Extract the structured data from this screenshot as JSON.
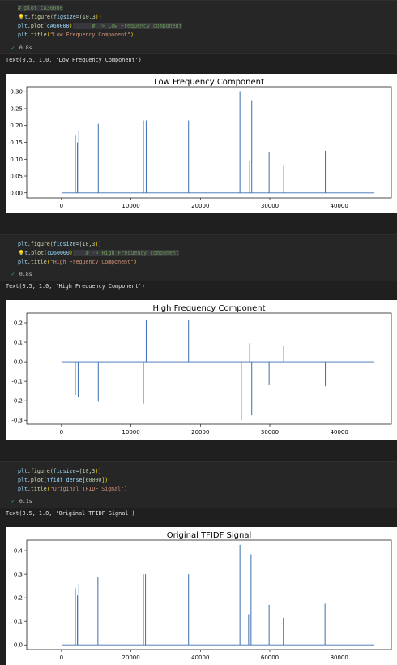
{
  "cells": [
    {
      "code": [
        [
          {
            "t": "# plot cA30000",
            "c": "comment",
            "hl": true
          }
        ],
        [
          {
            "t": "💡",
            "c": "bulb"
          },
          {
            "t": "t",
            "c": "ident"
          },
          {
            "t": ".",
            "c": "def"
          },
          {
            "t": "figure",
            "c": "fn"
          },
          {
            "t": "(",
            "c": "brk"
          },
          {
            "t": "figsize",
            "c": "ident"
          },
          {
            "t": "=(",
            "c": "def"
          },
          {
            "t": "10",
            "c": "num"
          },
          {
            "t": ",",
            "c": "def"
          },
          {
            "t": "3",
            "c": "num"
          },
          {
            "t": "))",
            "c": "brk"
          }
        ],
        [
          {
            "t": "plt",
            "c": "ident"
          },
          {
            "t": ".",
            "c": "def"
          },
          {
            "t": "plot",
            "c": "fn"
          },
          {
            "t": "(",
            "c": "brk"
          },
          {
            "t": "cA60000",
            "c": "ident"
          },
          {
            "t": ")",
            "c": "brk"
          },
          {
            "t": "      # -> Low Frequency component",
            "c": "comment",
            "hl": true
          }
        ],
        [
          {
            "t": "plt",
            "c": "ident"
          },
          {
            "t": ".",
            "c": "def"
          },
          {
            "t": "title",
            "c": "fn"
          },
          {
            "t": "(",
            "c": "brk"
          },
          {
            "t": "\"Low Frequency Component\"",
            "c": "str"
          },
          {
            "t": ")",
            "c": "brk"
          }
        ]
      ],
      "time": "0.8s",
      "output": "Text(0.5, 1.0, 'Low Frequency Component')"
    },
    {
      "code": [
        [
          {
            "t": "plt",
            "c": "ident"
          },
          {
            "t": ".",
            "c": "def"
          },
          {
            "t": "figure",
            "c": "fn"
          },
          {
            "t": "(",
            "c": "brk"
          },
          {
            "t": "figsize",
            "c": "ident"
          },
          {
            "t": "=(",
            "c": "def"
          },
          {
            "t": "10",
            "c": "num"
          },
          {
            "t": ",",
            "c": "def"
          },
          {
            "t": "3",
            "c": "num"
          },
          {
            "t": "))",
            "c": "brk"
          }
        ],
        [
          {
            "t": "💡",
            "c": "bulb"
          },
          {
            "t": "t",
            "c": "ident"
          },
          {
            "t": ".",
            "c": "def"
          },
          {
            "t": "plot",
            "c": "fn"
          },
          {
            "t": "(",
            "c": "brk"
          },
          {
            "t": "cD60000",
            "c": "ident"
          },
          {
            "t": ")",
            "c": "brk"
          },
          {
            "t": "    # -> High Frequency component",
            "c": "comment",
            "hl": true
          }
        ],
        [
          {
            "t": "plt",
            "c": "ident"
          },
          {
            "t": ".",
            "c": "def"
          },
          {
            "t": "title",
            "c": "fn"
          },
          {
            "t": "(",
            "c": "brk"
          },
          {
            "t": "\"High Frequency Component\"",
            "c": "str"
          },
          {
            "t": ")",
            "c": "brk"
          }
        ]
      ],
      "time": "0.8s",
      "output": "Text(0.5, 1.0, 'High Frequency Component')"
    },
    {
      "code": [
        [
          {
            "t": "plt",
            "c": "ident"
          },
          {
            "t": ".",
            "c": "def"
          },
          {
            "t": "figure",
            "c": "fn"
          },
          {
            "t": "(",
            "c": "brk"
          },
          {
            "t": "figsize",
            "c": "ident"
          },
          {
            "t": "=(",
            "c": "def"
          },
          {
            "t": "10",
            "c": "num"
          },
          {
            "t": ",",
            "c": "def"
          },
          {
            "t": "3",
            "c": "num"
          },
          {
            "t": "))",
            "c": "brk"
          }
        ],
        [
          {
            "t": "plt",
            "c": "ident"
          },
          {
            "t": ".",
            "c": "def"
          },
          {
            "t": "plot",
            "c": "fn"
          },
          {
            "t": "(",
            "c": "brk"
          },
          {
            "t": "tfidf_dense",
            "c": "ident"
          },
          {
            "t": "[",
            "c": "def"
          },
          {
            "t": "60000",
            "c": "num"
          },
          {
            "t": "])",
            "c": "brk"
          }
        ],
        [
          {
            "t": "plt",
            "c": "ident"
          },
          {
            "t": ".",
            "c": "def"
          },
          {
            "t": "title",
            "c": "fn"
          },
          {
            "t": "(",
            "c": "brk"
          },
          {
            "t": "\"Original TFIDF Signal\"",
            "c": "str"
          },
          {
            "t": ")",
            "c": "brk"
          }
        ]
      ],
      "time": "0.1s",
      "output": "Text(0.5, 1.0, 'Original TFIDF Signal')"
    }
  ],
  "colors": {
    "line": "#3a6fb0",
    "check": "#3fbf6f"
  },
  "chart_data": [
    {
      "type": "line",
      "title": "Low Frequency Component",
      "xlim": [
        -5000,
        47500
      ],
      "ylim": [
        -0.015,
        0.315
      ],
      "xticks": [
        0,
        10000,
        20000,
        30000,
        40000
      ],
      "yticks": [
        0.0,
        0.05,
        0.1,
        0.15,
        0.2,
        0.25,
        0.3
      ],
      "ytick_decimals": 2,
      "baseline": 0,
      "x_end": 45000,
      "spikes": [
        [
          2000,
          0.17
        ],
        [
          2300,
          0.15
        ],
        [
          2500,
          0.185
        ],
        [
          5300,
          0.205
        ],
        [
          11800,
          0.215
        ],
        [
          12200,
          0.215
        ],
        [
          18300,
          0.215
        ],
        [
          25700,
          0.302
        ],
        [
          27100,
          0.095
        ],
        [
          27400,
          0.275
        ],
        [
          29900,
          0.12
        ],
        [
          32000,
          0.08
        ],
        [
          38000,
          0.125
        ]
      ]
    },
    {
      "type": "line",
      "title": "High Frequency Component",
      "xlim": [
        -5000,
        47500
      ],
      "ylim": [
        -0.32,
        0.25
      ],
      "xticks": [
        0,
        10000,
        20000,
        30000,
        40000
      ],
      "yticks": [
        -0.3,
        -0.2,
        -0.1,
        0.0,
        0.1,
        0.2
      ],
      "ytick_decimals": 1,
      "baseline": 0,
      "x_end": 45000,
      "spikes": [
        [
          2000,
          -0.17
        ],
        [
          2400,
          -0.18
        ],
        [
          5300,
          -0.205
        ],
        [
          11800,
          -0.215
        ],
        [
          12200,
          0.215
        ],
        [
          18300,
          0.215
        ],
        [
          25900,
          -0.3
        ],
        [
          27100,
          0.095
        ],
        [
          27400,
          -0.275
        ],
        [
          29900,
          -0.12
        ],
        [
          32000,
          0.08
        ],
        [
          38000,
          -0.125
        ]
      ]
    },
    {
      "type": "line",
      "title": "Original TFIDF Signal",
      "xlim": [
        -10000,
        95000
      ],
      "ylim": [
        -0.02,
        0.445
      ],
      "xticks": [
        0,
        20000,
        40000,
        60000,
        80000
      ],
      "yticks": [
        0.0,
        0.1,
        0.2,
        0.3,
        0.4
      ],
      "ytick_decimals": 1,
      "baseline": 0,
      "x_end": 90000,
      "spikes": [
        [
          4000,
          0.24
        ],
        [
          4600,
          0.21
        ],
        [
          5000,
          0.26
        ],
        [
          10500,
          0.29
        ],
        [
          23600,
          0.3
        ],
        [
          24200,
          0.3
        ],
        [
          36600,
          0.3
        ],
        [
          51400,
          0.425
        ],
        [
          53900,
          0.13
        ],
        [
          54600,
          0.385
        ],
        [
          59800,
          0.17
        ],
        [
          63900,
          0.115
        ],
        [
          75900,
          0.175
        ]
      ]
    }
  ]
}
